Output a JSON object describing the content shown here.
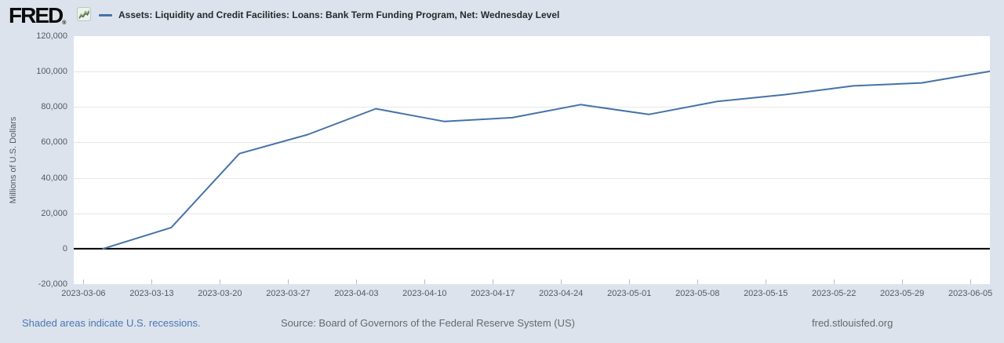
{
  "header": {
    "logo_text": "FRED",
    "registered_mark": "®",
    "legend": {
      "series_label": "Assets: Liquidity and Credit Facilities: Loans: Bank Term Funding Program, Net: Wednesday Level",
      "series_color": "#4572a7"
    }
  },
  "footer": {
    "recession_note": "Shaded areas indicate U.S. recessions.",
    "source": "Source: Board of Governors of the Federal Reserve System (US)",
    "site": "fred.stlouisfed.org"
  },
  "colors": {
    "background": "#dce3ec",
    "plot_background": "#ffffff",
    "gridline": "#e6e6e6",
    "zero_line": "#000000",
    "series_line": "#4572a7",
    "link_blue": "#4a77b4",
    "muted_text": "#66696d",
    "axis_text": "#555a60"
  },
  "chart_data": {
    "type": "line",
    "title": "Assets: Liquidity and Credit Facilities: Loans: Bank Term Funding Program, Net: Wednesday Level",
    "xlabel": "",
    "ylabel": "Millions of U.S. Dollars",
    "ylim": [
      -20000,
      120000
    ],
    "y_ticks": [
      120000,
      100000,
      80000,
      60000,
      40000,
      20000,
      0,
      -20000
    ],
    "xlim": [
      "2023-03-05",
      "2023-06-07"
    ],
    "x_ticks": [
      "2023-03-06",
      "2023-03-13",
      "2023-03-20",
      "2023-03-27",
      "2023-04-03",
      "2023-04-10",
      "2023-04-17",
      "2023-04-24",
      "2023-05-01",
      "2023-05-08",
      "2023-05-15",
      "2023-05-22",
      "2023-05-29",
      "2023-06-05"
    ],
    "grid": true,
    "zero_line": true,
    "legend_position": "top-left-header",
    "series": [
      {
        "name": "Assets: Liquidity and Credit Facilities: Loans: Bank Term Funding Program, Net: Wednesday Level",
        "color": "#4572a7",
        "x": [
          "2023-03-08",
          "2023-03-15",
          "2023-03-22",
          "2023-03-29",
          "2023-04-05",
          "2023-04-12",
          "2023-04-19",
          "2023-04-26",
          "2023-05-03",
          "2023-05-10",
          "2023-05-17",
          "2023-05-24",
          "2023-05-31",
          "2023-06-07"
        ],
        "values": [
          0,
          11943,
          53669,
          64403,
          79021,
          71837,
          73982,
          81327,
          75778,
          83101,
          87006,
          91907,
          93615,
          100161
        ]
      }
    ]
  }
}
